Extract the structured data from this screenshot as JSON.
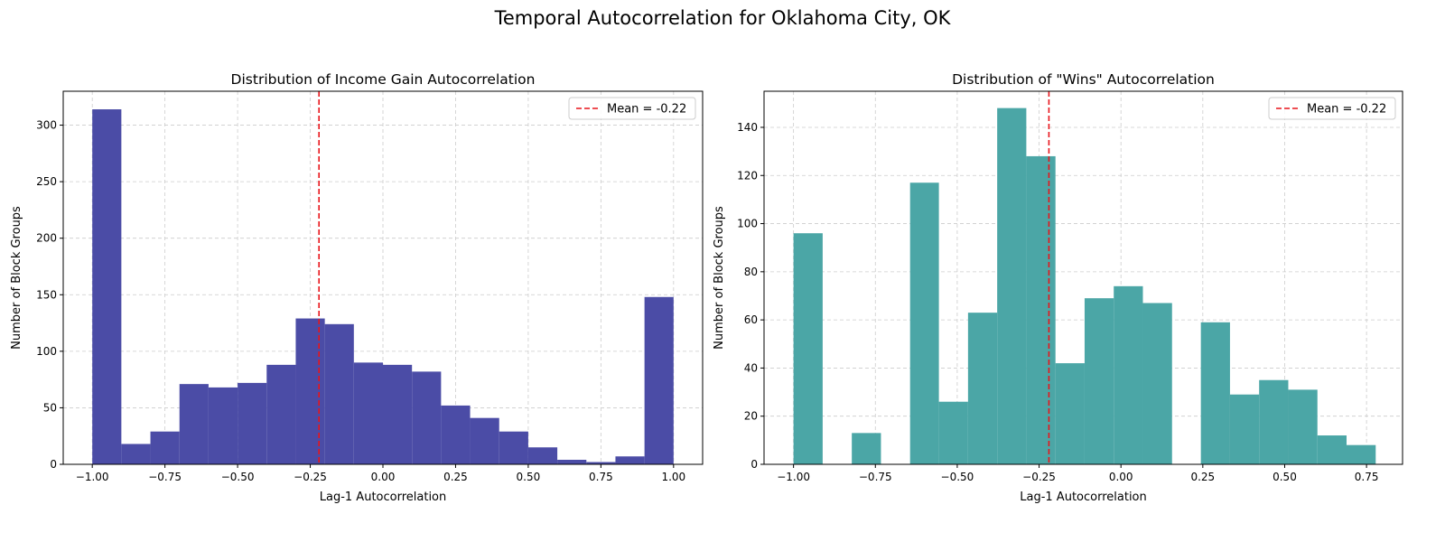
{
  "figure_title": "Temporal Autocorrelation for Oklahoma City, OK",
  "colors": {
    "left_bars": "#4b4ca6",
    "right_bars": "#4ba6a6",
    "mean_line": "#e8141a",
    "grid": "#cccccc"
  },
  "chart_data": [
    {
      "type": "bar",
      "title": "Distribution of Income Gain Autocorrelation",
      "xlabel": "Lag-1 Autocorrelation",
      "ylabel": "Number of Block Groups",
      "xlim": [
        -1.1,
        1.1
      ],
      "ylim": [
        0,
        330
      ],
      "xticks": [
        -1.0,
        -0.75,
        -0.5,
        -0.25,
        0.0,
        0.25,
        0.5,
        0.75,
        1.0
      ],
      "xtick_labels": [
        "−1.00",
        "−0.75",
        "−0.50",
        "−0.25",
        "0.00",
        "0.25",
        "0.50",
        "0.75",
        "1.00"
      ],
      "yticks": [
        0,
        50,
        100,
        150,
        200,
        250,
        300
      ],
      "ytick_labels": [
        "0",
        "50",
        "100",
        "150",
        "200",
        "250",
        "300"
      ],
      "grid": true,
      "legend": {
        "position": "top-right",
        "entries": [
          "Mean = -0.22"
        ]
      },
      "mean": -0.22,
      "bins": [
        {
          "x0": -1.0,
          "x1": -0.9,
          "count": 314
        },
        {
          "x0": -0.9,
          "x1": -0.8,
          "count": 18
        },
        {
          "x0": -0.8,
          "x1": -0.7,
          "count": 29
        },
        {
          "x0": -0.7,
          "x1": -0.6,
          "count": 71
        },
        {
          "x0": -0.6,
          "x1": -0.5,
          "count": 68
        },
        {
          "x0": -0.5,
          "x1": -0.4,
          "count": 72
        },
        {
          "x0": -0.4,
          "x1": -0.3,
          "count": 88
        },
        {
          "x0": -0.3,
          "x1": -0.2,
          "count": 129
        },
        {
          "x0": -0.2,
          "x1": -0.1,
          "count": 124
        },
        {
          "x0": -0.1,
          "x1": 0.0,
          "count": 90
        },
        {
          "x0": 0.0,
          "x1": 0.1,
          "count": 88
        },
        {
          "x0": 0.1,
          "x1": 0.2,
          "count": 82
        },
        {
          "x0": 0.2,
          "x1": 0.3,
          "count": 52
        },
        {
          "x0": 0.3,
          "x1": 0.4,
          "count": 41
        },
        {
          "x0": 0.4,
          "x1": 0.5,
          "count": 29
        },
        {
          "x0": 0.5,
          "x1": 0.6,
          "count": 15
        },
        {
          "x0": 0.6,
          "x1": 0.7,
          "count": 4
        },
        {
          "x0": 0.7,
          "x1": 0.8,
          "count": 2
        },
        {
          "x0": 0.8,
          "x1": 0.9,
          "count": 7
        },
        {
          "x0": 0.9,
          "x1": 1.0,
          "count": 148
        }
      ]
    },
    {
      "type": "bar",
      "title": "Distribution of \"Wins\" Autocorrelation",
      "xlabel": "Lag-1 Autocorrelation",
      "ylabel": "Number of Block Groups",
      "xlim": [
        -1.09,
        0.86
      ],
      "ylim": [
        0,
        155
      ],
      "xticks": [
        -1.0,
        -0.75,
        -0.5,
        -0.25,
        0.0,
        0.25,
        0.5,
        0.75
      ],
      "xtick_labels": [
        "−1.00",
        "−0.75",
        "−0.50",
        "−0.25",
        "0.00",
        "0.25",
        "0.50",
        "0.75"
      ],
      "yticks": [
        0,
        20,
        40,
        60,
        80,
        100,
        120,
        140
      ],
      "ytick_labels": [
        "0",
        "20",
        "40",
        "60",
        "80",
        "100",
        "120",
        "140"
      ],
      "grid": true,
      "legend": {
        "position": "top-right",
        "entries": [
          "Mean = -0.22"
        ]
      },
      "mean": -0.22,
      "bins": [
        {
          "x0": -1.0,
          "x1": -0.911,
          "count": 96
        },
        {
          "x0": -0.911,
          "x1": -0.822,
          "count": 0
        },
        {
          "x0": -0.822,
          "x1": -0.733,
          "count": 13
        },
        {
          "x0": -0.733,
          "x1": -0.644,
          "count": 0
        },
        {
          "x0": -0.644,
          "x1": -0.556,
          "count": 117
        },
        {
          "x0": -0.556,
          "x1": -0.467,
          "count": 26
        },
        {
          "x0": -0.467,
          "x1": -0.378,
          "count": 63
        },
        {
          "x0": -0.378,
          "x1": -0.289,
          "count": 148
        },
        {
          "x0": -0.289,
          "x1": -0.2,
          "count": 128
        },
        {
          "x0": -0.2,
          "x1": -0.111,
          "count": 42
        },
        {
          "x0": -0.111,
          "x1": -0.022,
          "count": 69
        },
        {
          "x0": -0.022,
          "x1": 0.067,
          "count": 74
        },
        {
          "x0": 0.067,
          "x1": 0.156,
          "count": 67
        },
        {
          "x0": 0.156,
          "x1": 0.244,
          "count": 0
        },
        {
          "x0": 0.244,
          "x1": 0.333,
          "count": 59
        },
        {
          "x0": 0.333,
          "x1": 0.422,
          "count": 29
        },
        {
          "x0": 0.422,
          "x1": 0.511,
          "count": 35
        },
        {
          "x0": 0.511,
          "x1": 0.6,
          "count": 31
        },
        {
          "x0": 0.6,
          "x1": 0.689,
          "count": 12
        },
        {
          "x0": 0.689,
          "x1": 0.778,
          "count": 8
        }
      ]
    }
  ]
}
